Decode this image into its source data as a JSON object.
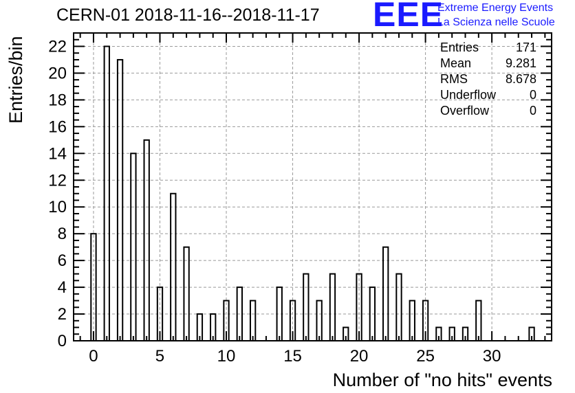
{
  "header": {
    "title": "CERN-01 2018-11-16--2018-11-17",
    "logo_mark": "EEE",
    "logo_line1": "Extreme Energy Events",
    "logo_line2": "La Scienza nelle Scuole"
  },
  "stats": [
    {
      "label": "Entries",
      "value": "171"
    },
    {
      "label": "Mean",
      "value": "9.281"
    },
    {
      "label": "RMS",
      "value": "8.678"
    },
    {
      "label": "Underflow",
      "value": "0"
    },
    {
      "label": "Overflow",
      "value": "0"
    }
  ],
  "colors": {
    "logo": "#1a1aff",
    "bars": "#000000",
    "grid": "#999999"
  },
  "chart_data": {
    "type": "bar",
    "title": "CERN-01 2018-11-16--2018-11-17",
    "xlabel": "Number of \"no hits\" events",
    "ylabel": "Entries/bin",
    "xlim": [
      -1.5,
      34.5
    ],
    "ylim": [
      0,
      23
    ],
    "x_ticks": [
      0,
      5,
      10,
      15,
      20,
      25,
      30
    ],
    "y_ticks": [
      0,
      2,
      4,
      6,
      8,
      10,
      12,
      14,
      16,
      18,
      20,
      22
    ],
    "grid": true,
    "legend": "none",
    "x": [
      0,
      1,
      2,
      3,
      4,
      5,
      6,
      7,
      8,
      9,
      10,
      11,
      12,
      13,
      14,
      15,
      16,
      17,
      18,
      19,
      20,
      21,
      22,
      23,
      24,
      25,
      26,
      27,
      28,
      29,
      30,
      31,
      32,
      33
    ],
    "values": [
      8,
      22,
      21,
      14,
      15,
      4,
      11,
      7,
      2,
      2,
      3,
      4,
      3,
      0,
      4,
      3,
      5,
      3,
      5,
      1,
      5,
      4,
      7,
      5,
      3,
      3,
      1,
      1,
      1,
      3,
      0,
      0,
      0,
      1
    ]
  }
}
